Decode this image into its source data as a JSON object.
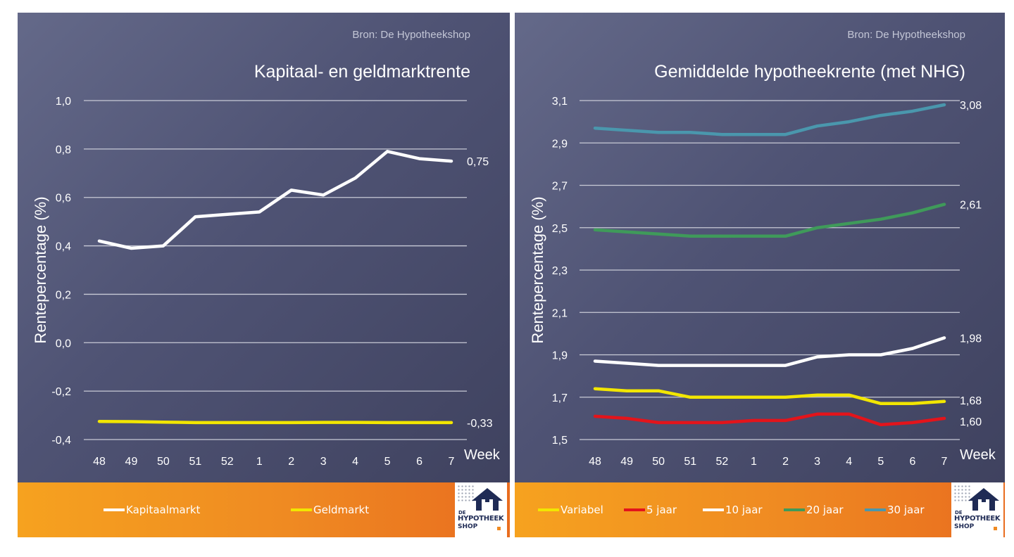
{
  "chart_data": [
    {
      "type": "line",
      "source": "Bron: De Hypotheekshop",
      "title": "Kapitaal- en geldmarktrente",
      "ylabel": "Rentepercentage (%)",
      "xlabel": "Week",
      "categories": [
        "48",
        "49",
        "50",
        "51",
        "52",
        "1",
        "2",
        "3",
        "4",
        "5",
        "6",
        "7"
      ],
      "ylim": [
        -0.4,
        1.0
      ],
      "yticks": [
        -0.4,
        -0.2,
        0.0,
        0.2,
        0.4,
        0.6,
        0.8,
        1.0
      ],
      "ytick_labels": [
        "-0,4",
        "-0,2",
        "0,0",
        "0,2",
        "0,4",
        "0,6",
        "0,8",
        "1,0"
      ],
      "grid": true,
      "legend_position": "bottom",
      "series": [
        {
          "name": "Kapitaalmarkt",
          "color": "#ffffff",
          "values": [
            0.42,
            0.39,
            0.4,
            0.52,
            0.53,
            0.54,
            0.63,
            0.61,
            0.68,
            0.79,
            0.76,
            0.75
          ],
          "end_label": "0,75"
        },
        {
          "name": "Geldmarkt",
          "color": "#f2e600",
          "values": [
            -0.325,
            -0.326,
            -0.328,
            -0.33,
            -0.33,
            -0.33,
            -0.33,
            -0.329,
            -0.329,
            -0.33,
            -0.33,
            -0.33
          ],
          "end_label": "-0,33"
        }
      ]
    },
    {
      "type": "line",
      "source": "Bron: De Hypotheekshop",
      "title": "Gemiddelde hypotheekrente (met NHG)",
      "ylabel": "Rentepercentage (%)",
      "xlabel": "Week",
      "categories": [
        "48",
        "49",
        "50",
        "51",
        "52",
        "1",
        "2",
        "3",
        "4",
        "5",
        "6",
        "7"
      ],
      "ylim": [
        1.5,
        3.1
      ],
      "yticks": [
        1.5,
        1.7,
        1.9,
        2.1,
        2.3,
        2.5,
        2.7,
        2.9,
        3.1
      ],
      "ytick_labels": [
        "1,5",
        "1,7",
        "1,9",
        "2,1",
        "2,3",
        "2,5",
        "2,7",
        "2,9",
        "3,1"
      ],
      "grid": true,
      "legend_position": "bottom",
      "series": [
        {
          "name": "Variabel",
          "color": "#f2e600",
          "values": [
            1.74,
            1.73,
            1.73,
            1.7,
            1.7,
            1.7,
            1.7,
            1.71,
            1.71,
            1.67,
            1.67,
            1.68
          ],
          "end_label": "1,68"
        },
        {
          "name": "5 jaar",
          "color": "#e3141b",
          "values": [
            1.61,
            1.6,
            1.58,
            1.58,
            1.58,
            1.59,
            1.59,
            1.62,
            1.62,
            1.57,
            1.58,
            1.6
          ],
          "end_label": "1,60"
        },
        {
          "name": "10 jaar",
          "color": "#ffffff",
          "values": [
            1.87,
            1.86,
            1.85,
            1.85,
            1.85,
            1.85,
            1.85,
            1.89,
            1.9,
            1.9,
            1.93,
            1.98
          ],
          "end_label": "1,98"
        },
        {
          "name": "20 jaar",
          "color": "#3f9a5a",
          "values": [
            2.49,
            2.48,
            2.47,
            2.46,
            2.46,
            2.46,
            2.46,
            2.5,
            2.52,
            2.54,
            2.57,
            2.61
          ],
          "end_label": "2,61"
        },
        {
          "name": "30 jaar",
          "color": "#4a97ad",
          "values": [
            2.97,
            2.96,
            2.95,
            2.95,
            2.94,
            2.94,
            2.94,
            2.98,
            3.0,
            3.03,
            3.05,
            3.08
          ],
          "end_label": "3,08"
        }
      ]
    }
  ],
  "logo": {
    "de": "DE",
    "line1": "HYPOTHEEK",
    "line2": "SHOP"
  }
}
